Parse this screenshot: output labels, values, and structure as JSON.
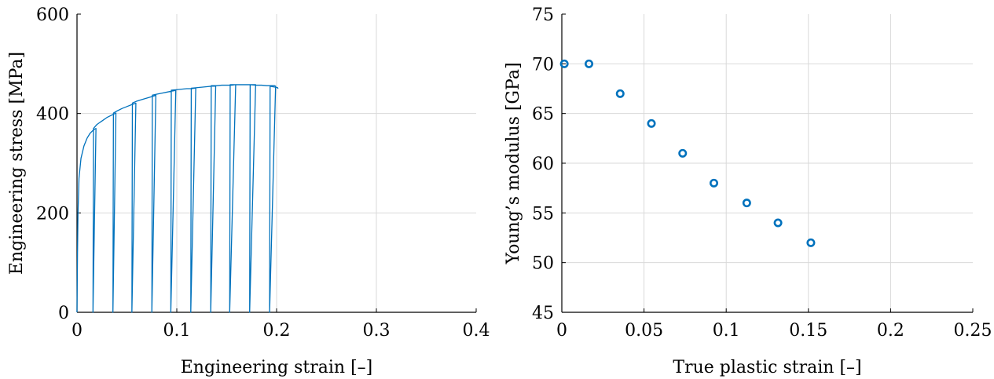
{
  "chart_data": [
    {
      "type": "line",
      "xlabel": "Engineering strain [–]",
      "ylabel": "Engineering stress [MPa]",
      "xlim": [
        0,
        0.4
      ],
      "ylim": [
        0,
        600
      ],
      "xticks": [
        0,
        0.1,
        0.2,
        0.3,
        0.4
      ],
      "xtick_labels": [
        "0",
        "0.1",
        "0.2",
        "0.3",
        "0.4"
      ],
      "yticks": [
        0,
        200,
        400,
        600
      ],
      "ytick_labels": [
        "0",
        "200",
        "400",
        "600"
      ],
      "grid": true,
      "color": "#0072BD",
      "series": [
        {
          "x": [
            0,
            0.0005,
            0.001,
            0.002,
            0.004,
            0.007,
            0.01,
            0.013,
            0.016,
            0.018,
            0.019,
            0.016,
            0.0165,
            0.02,
            0.025,
            0.03,
            0.035,
            0.038,
            0.039,
            0.036,
            0.0365,
            0.04,
            0.045,
            0.05,
            0.055,
            0.058,
            0.059,
            0.055,
            0.0555,
            0.06,
            0.065,
            0.07,
            0.075,
            0.078,
            0.079,
            0.075,
            0.0755,
            0.08,
            0.085,
            0.09,
            0.095,
            0.098,
            0.099,
            0.094,
            0.0945,
            0.1,
            0.105,
            0.11,
            0.115,
            0.118,
            0.119,
            0.114,
            0.1145,
            0.12,
            0.125,
            0.13,
            0.135,
            0.138,
            0.139,
            0.134,
            0.1345,
            0.14,
            0.145,
            0.15,
            0.155,
            0.158,
            0.159,
            0.153,
            0.1535,
            0.16,
            0.165,
            0.17,
            0.175,
            0.178,
            0.179,
            0.173,
            0.1735,
            0.18,
            0.185,
            0.19,
            0.195,
            0.198,
            0.199,
            0.193,
            0.1935,
            0.196,
            0.199,
            0.201,
            0.2015
          ],
          "y": [
            0,
            120,
            200,
            270,
            310,
            335,
            350,
            360,
            366,
            369,
            370,
            0,
            370,
            378,
            385,
            392,
            397,
            400,
            401,
            0,
            401,
            405,
            410,
            414,
            418,
            420,
            421,
            0,
            421,
            425,
            428,
            431,
            434,
            436,
            437,
            0,
            437,
            439,
            441,
            443,
            445,
            446,
            447,
            0,
            447,
            448,
            449,
            450,
            450,
            451,
            451,
            0,
            451,
            452,
            453,
            454,
            455,
            455,
            456,
            0,
            456,
            456,
            457,
            457,
            457,
            458,
            458,
            0,
            458,
            458,
            458,
            458,
            458,
            458,
            458,
            0,
            458,
            457,
            457,
            456,
            456,
            456,
            455,
            0,
            455,
            454,
            453,
            452,
            450
          ]
        }
      ]
    },
    {
      "type": "scatter",
      "xlabel": "True plastic strain [–]",
      "ylabel": "Young’s modulus [GPa]",
      "xlim": [
        0,
        0.25
      ],
      "ylim": [
        45,
        75
      ],
      "xticks": [
        0,
        0.05,
        0.1,
        0.15,
        0.2,
        0.25
      ],
      "xtick_labels": [
        "0",
        "0.05",
        "0.1",
        "0.15",
        "0.2",
        "0.25"
      ],
      "yticks": [
        45,
        50,
        55,
        60,
        65,
        70,
        75
      ],
      "ytick_labels": [
        "45",
        "50",
        "55",
        "60",
        "65",
        "70",
        "75"
      ],
      "grid": true,
      "color": "#0072BD",
      "series": [
        {
          "x": [
            0.0015,
            0.0165,
            0.0355,
            0.0545,
            0.0735,
            0.0925,
            0.1125,
            0.1315,
            0.1515
          ],
          "y": [
            70,
            70,
            67,
            64,
            61,
            58,
            56,
            54,
            52
          ]
        }
      ]
    }
  ]
}
